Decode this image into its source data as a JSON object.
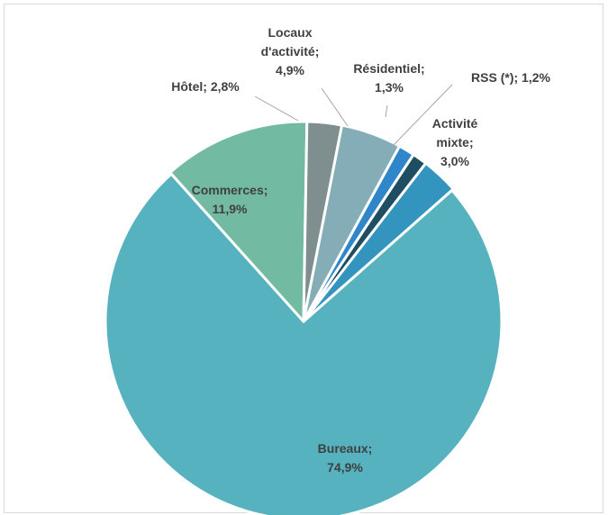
{
  "chart_data": {
    "type": "pie",
    "title": "",
    "slices": [
      {
        "name": "Bureaux",
        "value": 74.9,
        "label": [
          "Bureaux;",
          "74,9%"
        ],
        "color": "#56b2bf"
      },
      {
        "name": "Commerces",
        "value": 11.9,
        "label": [
          "Commerces;",
          "11,9%"
        ],
        "color": "#72baa2"
      },
      {
        "name": "Hôtel",
        "value": 2.8,
        "label": [
          "Hôtel; 2,8%"
        ],
        "color": "#7f8f8f"
      },
      {
        "name": "Locaux d'activité",
        "value": 4.9,
        "label": [
          "Locaux",
          "d'activité;",
          "4,9%"
        ],
        "color": "#84adb7"
      },
      {
        "name": "Résidentiel",
        "value": 1.3,
        "label": [
          "Résidentiel;",
          "1,3%"
        ],
        "color": "#2f86c9"
      },
      {
        "name": "RSS (*)",
        "value": 1.2,
        "label": [
          "RSS (*); 1,2%"
        ],
        "color": "#1f4e63"
      },
      {
        "name": "Activité mixte",
        "value": 3.0,
        "label": [
          "Activité",
          "mixte;",
          "3,0%"
        ],
        "color": "#3394bd"
      }
    ]
  }
}
